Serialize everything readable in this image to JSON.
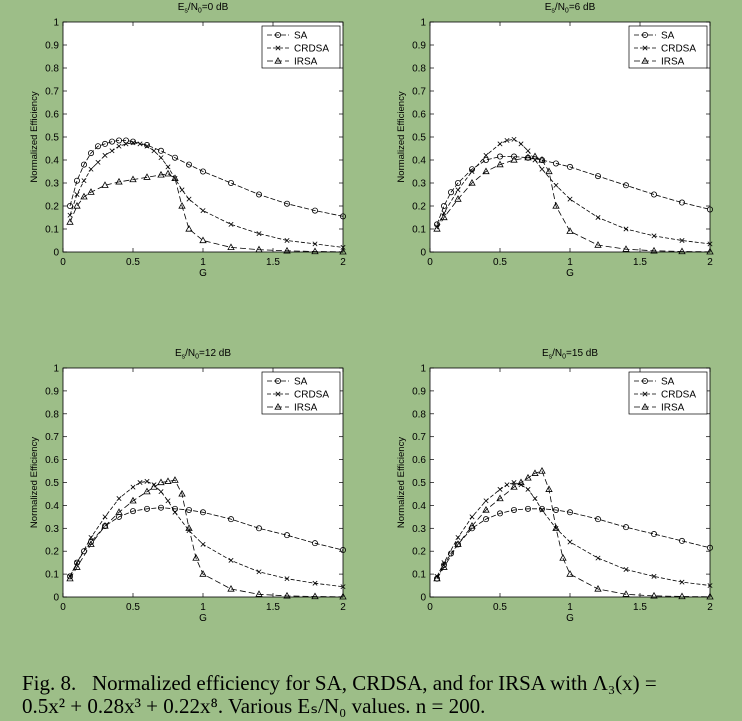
{
  "figure": {
    "caption_label": "Fig. 8.",
    "caption_line1": "Normalized efficiency for SA, CRDSA, and for IRSA with Λ₃(x) =",
    "caption_line2": "0.5x² + 0.28x³ + 0.22x⁸. Various Eₛ/N₀ values. n = 200."
  },
  "chart_data": [
    {
      "type": "line",
      "title": "Es/N0=0 dB",
      "xlabel": "G",
      "ylabel": "Normalized Efficiency",
      "xlim": [
        0,
        2
      ],
      "ylim": [
        0,
        1
      ],
      "xticks": [
        "0",
        "0.5",
        "1",
        "1.5",
        "2"
      ],
      "yticks": [
        "0",
        "0.1",
        "0.2",
        "0.3",
        "0.4",
        "0.5",
        "0.6",
        "0.7",
        "0.8",
        "0.9",
        "1"
      ],
      "legend_position": "top-right",
      "grid": false,
      "series": [
        {
          "name": "SA",
          "marker": "circle",
          "x": [
            0.05,
            0.1,
            0.15,
            0.2,
            0.25,
            0.3,
            0.35,
            0.4,
            0.45,
            0.5,
            0.6,
            0.7,
            0.8,
            0.9,
            1.0,
            1.2,
            1.4,
            1.6,
            1.8,
            2.0
          ],
          "y": [
            0.2,
            0.31,
            0.38,
            0.43,
            0.46,
            0.47,
            0.48,
            0.485,
            0.485,
            0.48,
            0.465,
            0.44,
            0.41,
            0.38,
            0.35,
            0.3,
            0.25,
            0.21,
            0.18,
            0.155
          ]
        },
        {
          "name": "CRDSA",
          "marker": "x",
          "x": [
            0.05,
            0.1,
            0.15,
            0.2,
            0.25,
            0.3,
            0.35,
            0.4,
            0.45,
            0.5,
            0.55,
            0.6,
            0.65,
            0.7,
            0.75,
            0.8,
            0.85,
            0.9,
            1.0,
            1.2,
            1.4,
            1.6,
            1.8,
            2.0
          ],
          "y": [
            0.16,
            0.25,
            0.31,
            0.36,
            0.39,
            0.42,
            0.44,
            0.46,
            0.47,
            0.475,
            0.47,
            0.46,
            0.44,
            0.41,
            0.37,
            0.32,
            0.27,
            0.23,
            0.18,
            0.12,
            0.08,
            0.05,
            0.035,
            0.02
          ]
        },
        {
          "name": "IRSA",
          "marker": "triangle",
          "x": [
            0.05,
            0.1,
            0.15,
            0.2,
            0.3,
            0.4,
            0.5,
            0.6,
            0.7,
            0.75,
            0.8,
            0.85,
            0.9,
            1.0,
            1.2,
            1.4,
            1.6,
            1.8,
            2.0
          ],
          "y": [
            0.13,
            0.2,
            0.24,
            0.26,
            0.29,
            0.305,
            0.315,
            0.325,
            0.335,
            0.34,
            0.32,
            0.2,
            0.1,
            0.05,
            0.02,
            0.01,
            0.005,
            0.002,
            0.001
          ]
        }
      ]
    },
    {
      "type": "line",
      "title": "Es/N0=6 dB",
      "xlabel": "G",
      "ylabel": "Normalized Efficiency",
      "xlim": [
        0,
        2
      ],
      "ylim": [
        0,
        1
      ],
      "xticks": [
        "0",
        "0.5",
        "1",
        "1.5",
        "2"
      ],
      "yticks": [
        "0",
        "0.1",
        "0.2",
        "0.3",
        "0.4",
        "0.5",
        "0.6",
        "0.7",
        "0.8",
        "0.9",
        "1"
      ],
      "legend_position": "top-right",
      "grid": false,
      "series": [
        {
          "name": "SA",
          "marker": "circle",
          "x": [
            0.05,
            0.1,
            0.15,
            0.2,
            0.3,
            0.4,
            0.5,
            0.6,
            0.7,
            0.8,
            0.9,
            1.0,
            1.2,
            1.4,
            1.6,
            1.8,
            2.0
          ],
          "y": [
            0.12,
            0.2,
            0.26,
            0.3,
            0.36,
            0.4,
            0.415,
            0.415,
            0.41,
            0.4,
            0.385,
            0.37,
            0.33,
            0.29,
            0.25,
            0.215,
            0.185
          ]
        },
        {
          "name": "CRDSA",
          "marker": "x",
          "x": [
            0.05,
            0.1,
            0.2,
            0.3,
            0.4,
            0.5,
            0.55,
            0.6,
            0.65,
            0.7,
            0.75,
            0.8,
            0.9,
            1.0,
            1.2,
            1.4,
            1.6,
            1.8,
            2.0
          ],
          "y": [
            0.11,
            0.17,
            0.27,
            0.35,
            0.42,
            0.47,
            0.485,
            0.49,
            0.47,
            0.44,
            0.4,
            0.36,
            0.29,
            0.23,
            0.15,
            0.1,
            0.07,
            0.05,
            0.035
          ]
        },
        {
          "name": "IRSA",
          "marker": "triangle",
          "x": [
            0.05,
            0.1,
            0.2,
            0.3,
            0.4,
            0.5,
            0.6,
            0.7,
            0.75,
            0.8,
            0.85,
            0.9,
            1.0,
            1.2,
            1.4,
            1.6,
            1.8,
            2.0
          ],
          "y": [
            0.1,
            0.15,
            0.23,
            0.3,
            0.35,
            0.38,
            0.4,
            0.41,
            0.415,
            0.4,
            0.35,
            0.2,
            0.09,
            0.03,
            0.012,
            0.005,
            0.002,
            0.001
          ]
        }
      ]
    },
    {
      "type": "line",
      "title": "Es/N0=12 dB",
      "xlabel": "G",
      "ylabel": "Normalized Efficiency",
      "xlim": [
        0,
        2
      ],
      "ylim": [
        0,
        1
      ],
      "xticks": [
        "0",
        "0.5",
        "1",
        "1.5",
        "2"
      ],
      "yticks": [
        "0",
        "0.1",
        "0.2",
        "0.3",
        "0.4",
        "0.5",
        "0.6",
        "0.7",
        "0.8",
        "0.9",
        "1"
      ],
      "legend_position": "top-right",
      "grid": false,
      "series": [
        {
          "name": "SA",
          "marker": "circle",
          "x": [
            0.05,
            0.1,
            0.15,
            0.2,
            0.3,
            0.4,
            0.5,
            0.6,
            0.7,
            0.8,
            0.9,
            1.0,
            1.2,
            1.4,
            1.6,
            1.8,
            2.0
          ],
          "y": [
            0.09,
            0.15,
            0.2,
            0.24,
            0.31,
            0.35,
            0.375,
            0.385,
            0.39,
            0.385,
            0.38,
            0.37,
            0.34,
            0.3,
            0.27,
            0.235,
            0.205
          ]
        },
        {
          "name": "CRDSA",
          "marker": "x",
          "x": [
            0.05,
            0.1,
            0.2,
            0.3,
            0.4,
            0.5,
            0.55,
            0.6,
            0.65,
            0.7,
            0.75,
            0.8,
            0.9,
            1.0,
            1.2,
            1.4,
            1.6,
            1.8,
            2.0
          ],
          "y": [
            0.09,
            0.15,
            0.26,
            0.35,
            0.43,
            0.48,
            0.5,
            0.505,
            0.49,
            0.46,
            0.42,
            0.37,
            0.29,
            0.23,
            0.16,
            0.11,
            0.08,
            0.06,
            0.045
          ]
        },
        {
          "name": "IRSA",
          "marker": "triangle",
          "x": [
            0.05,
            0.1,
            0.2,
            0.3,
            0.4,
            0.5,
            0.6,
            0.65,
            0.7,
            0.75,
            0.8,
            0.85,
            0.9,
            0.95,
            1.0,
            1.2,
            1.4,
            1.6,
            1.8,
            2.0
          ],
          "y": [
            0.08,
            0.13,
            0.23,
            0.31,
            0.37,
            0.42,
            0.46,
            0.48,
            0.5,
            0.505,
            0.51,
            0.45,
            0.3,
            0.17,
            0.1,
            0.035,
            0.012,
            0.005,
            0.002,
            0.001
          ]
        }
      ]
    },
    {
      "type": "line",
      "title": "Es/N0=15 dB",
      "xlabel": "G",
      "ylabel": "Normalized Efficiency",
      "xlim": [
        0,
        2
      ],
      "ylim": [
        0,
        1
      ],
      "xticks": [
        "0",
        "0.5",
        "1",
        "1.5",
        "2"
      ],
      "yticks": [
        "0",
        "0.1",
        "0.2",
        "0.3",
        "0.4",
        "0.5",
        "0.6",
        "0.7",
        "0.8",
        "0.9",
        "1"
      ],
      "legend_position": "top-right",
      "grid": false,
      "series": [
        {
          "name": "SA",
          "marker": "circle",
          "x": [
            0.05,
            0.1,
            0.15,
            0.2,
            0.3,
            0.4,
            0.5,
            0.6,
            0.7,
            0.8,
            0.9,
            1.0,
            1.2,
            1.4,
            1.6,
            1.8,
            2.0
          ],
          "y": [
            0.08,
            0.14,
            0.19,
            0.23,
            0.3,
            0.34,
            0.365,
            0.38,
            0.385,
            0.385,
            0.38,
            0.37,
            0.34,
            0.305,
            0.275,
            0.245,
            0.215
          ]
        },
        {
          "name": "CRDSA",
          "marker": "x",
          "x": [
            0.05,
            0.1,
            0.2,
            0.3,
            0.4,
            0.5,
            0.55,
            0.6,
            0.65,
            0.7,
            0.75,
            0.8,
            0.9,
            1.0,
            1.2,
            1.4,
            1.6,
            1.8,
            2.0
          ],
          "y": [
            0.09,
            0.15,
            0.26,
            0.35,
            0.42,
            0.47,
            0.49,
            0.5,
            0.49,
            0.47,
            0.43,
            0.38,
            0.3,
            0.24,
            0.17,
            0.12,
            0.09,
            0.065,
            0.05
          ]
        },
        {
          "name": "IRSA",
          "marker": "triangle",
          "x": [
            0.05,
            0.1,
            0.2,
            0.3,
            0.4,
            0.5,
            0.6,
            0.65,
            0.7,
            0.75,
            0.8,
            0.85,
            0.9,
            0.95,
            1.0,
            1.2,
            1.4,
            1.6,
            1.8,
            2.0
          ],
          "y": [
            0.08,
            0.13,
            0.23,
            0.31,
            0.38,
            0.43,
            0.48,
            0.5,
            0.52,
            0.54,
            0.55,
            0.47,
            0.3,
            0.17,
            0.1,
            0.035,
            0.012,
            0.005,
            0.002,
            0.001
          ]
        }
      ]
    }
  ]
}
